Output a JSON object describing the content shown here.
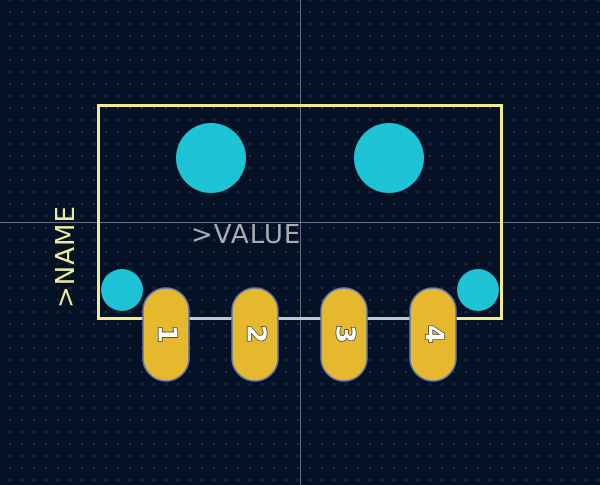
{
  "footprint": {
    "name_label": ">NAME",
    "value_label": ">VALUE",
    "pads": [
      {
        "number": "1"
      },
      {
        "number": "2"
      },
      {
        "number": "3"
      },
      {
        "number": "4"
      }
    ]
  },
  "colors": {
    "background": "#051124",
    "silkscreen": "#f2ec8c",
    "fabrication_text": "#a8adb4",
    "smd_pad": "#e6b82e",
    "mounting_hole": "#1ec4d6",
    "crosshair": "#7e8aa0"
  }
}
